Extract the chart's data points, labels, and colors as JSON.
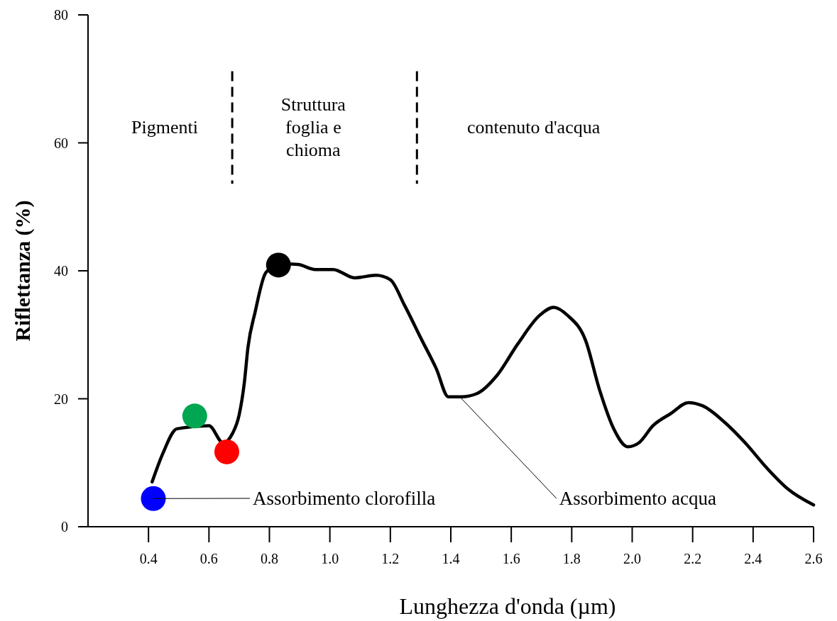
{
  "chart_data": {
    "type": "line",
    "xlabel": "Lunghezza d'onda (µm)",
    "ylabel": "Riflettanza (%)",
    "xlim": [
      0.2,
      2.6
    ],
    "ylim": [
      0,
      80
    ],
    "xticks": [
      0.4,
      0.6,
      0.8,
      {
        "value": 1,
        "label": "1.0"
      },
      1.2,
      1.4,
      1.6,
      1.8,
      {
        "value": 2,
        "label": "2.0"
      },
      2.2,
      2.4,
      2.6
    ],
    "yticks": [
      0,
      20,
      40,
      60,
      80
    ],
    "grid": false,
    "marker": "none",
    "line_style": "solid",
    "series": [
      {
        "color": "#000000",
        "x": [
          0.412,
          0.447,
          0.494,
          0.553,
          0.6,
          0.647,
          0.677,
          0.7,
          0.717,
          0.729,
          0.753,
          0.788,
          0.835,
          0.894,
          0.952,
          1.011,
          1.082,
          1.152,
          1.2,
          1.246,
          1.305,
          1.352,
          1.392,
          1.434,
          1.486,
          1.552,
          1.622,
          1.693,
          1.74,
          1.787,
          1.846,
          1.892,
          1.939,
          1.986,
          2.022,
          2.069,
          2.128,
          2.186,
          2.233,
          2.304,
          2.374,
          2.445,
          2.515,
          2.6
        ],
        "values": [
          7.0,
          11.4,
          15.3,
          null,
          15.8,
          13.1,
          14.5,
          17.5,
          22.5,
          28,
          33.6,
          39.7,
          41.1,
          41,
          40.2,
          40.2,
          38.9,
          39.3,
          38.6,
          34.7,
          29.1,
          24.7,
          20.3,
          20.3,
          20.8,
          23.6,
          28.6,
          33,
          34.3,
          33,
          29.1,
          21.4,
          15.3,
          12.5,
          13.1,
          15.8,
          17.7,
          19.4,
          18.9,
          16.4,
          13.1,
          9.2,
          5.9,
          3.4
        ]
      },
      {
        "type": "scatter",
        "marker": "circle",
        "x": [
          0.416,
          0.553,
          0.659,
          0.83
        ],
        "colors": [
          "#0000ff",
          "#00a651",
          "#ff0000",
          "#000000"
        ],
        "values": [
          4.4,
          17.3,
          11.7,
          40.9
        ]
      }
    ],
    "ref_lines": [
      {
        "axis": "x",
        "value": 0.677,
        "line_style": "dashed",
        "color": "#000000"
      },
      {
        "axis": "x",
        "value": 1.288,
        "line_style": "dashed",
        "color": "#000000"
      }
    ],
    "annotations": [
      "Pigmenti",
      "Struttura foglia e chioma",
      "contenuto d'acqua",
      {
        "text": "Assorbimento clorofilla",
        "x": 0.416,
        "y": 4.4
      },
      {
        "text": "Assorbimento acqua",
        "x": 1.43,
        "y": 20.3
      }
    ]
  }
}
